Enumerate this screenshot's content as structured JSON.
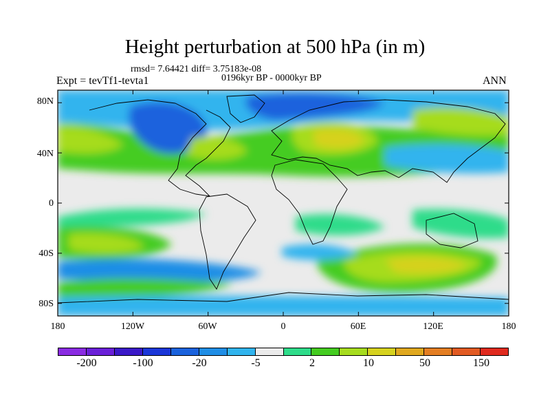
{
  "header": {
    "title": "Height perturbation at 500 hPa (in m)",
    "stats": "rmsd= 7.64421 diff= 3.75183e-08",
    "period": "0196kyr BP - 0000kyr BP",
    "experiment": "Expt = tevTf1-tevta1",
    "season": "ANN"
  },
  "map": {
    "lat_labels": [
      "80N",
      "40N",
      "0",
      "40S",
      "80S"
    ],
    "lon_labels": [
      "180",
      "120W",
      "60W",
      "0",
      "60E",
      "120E",
      "180"
    ],
    "colors": {
      "frame": "#000000",
      "coastline": "#000000",
      "background": "#ffffff",
      "neutral_field": "#ebebeb"
    }
  },
  "colorbar": {
    "colors": [
      "#8a2be2",
      "#6a1fd8",
      "#3a18c8",
      "#1a36d8",
      "#1a62dd",
      "#1f8ee6",
      "#30b4ee",
      "#ebebeb",
      "#2edc8a",
      "#44cc20",
      "#a6dc1e",
      "#d6d21e",
      "#e0a81e",
      "#e47e22",
      "#e25a22",
      "#e02a1e"
    ],
    "labels": [
      "-200",
      "-100",
      "-20",
      "-5",
      "2",
      "10",
      "50",
      "150"
    ]
  },
  "chart_data": {
    "type": "heatmap",
    "title": "Height perturbation at 500 hPa (in m)",
    "subtitle": "0196kyr BP - 0000kyr BP",
    "x_axis": {
      "ticks": [
        "180",
        "120W",
        "60W",
        "0",
        "60E",
        "120E",
        "180"
      ],
      "range": [
        -180,
        180
      ]
    },
    "y_axis": {
      "ticks": [
        "80N",
        "40N",
        "0",
        "40S",
        "80S"
      ],
      "range": [
        -90,
        90
      ]
    },
    "color_levels": [
      -200,
      -100,
      -50,
      -20,
      -10,
      -5,
      -2,
      2,
      5,
      10,
      20,
      50,
      100,
      150
    ],
    "colorbar_labels": [
      "-200",
      "-100",
      "-20",
      "-5",
      "2",
      "10",
      "50",
      "150"
    ],
    "features": [
      {
        "region": "Hudson Bay / northern Canada",
        "lon": -90,
        "lat": 62,
        "sign": "negative",
        "level": "-20 to -5"
      },
      {
        "region": "Europe / western Russia",
        "lon": 40,
        "lat": 50,
        "sign": "positive",
        "level": "50 to 150"
      },
      {
        "region": "North Atlantic",
        "lon": -15,
        "lat": 55,
        "sign": "negative",
        "level": "-20 to -5"
      },
      {
        "region": "North Pacific",
        "lon": -160,
        "lat": 55,
        "sign": "positive",
        "level": "10 to 50"
      },
      {
        "region": "Southern Indian Ocean",
        "lon": 90,
        "lat": -48,
        "sign": "positive",
        "level": "50 to 150"
      },
      {
        "region": "Southern Ocean circumpolar",
        "lon": -60,
        "lat": -55,
        "sign": "negative",
        "level": "-5 to -2"
      },
      {
        "region": "Tropics",
        "lon": 0,
        "lat": 0,
        "sign": "neutral",
        "level": "-2 to 2"
      }
    ]
  }
}
